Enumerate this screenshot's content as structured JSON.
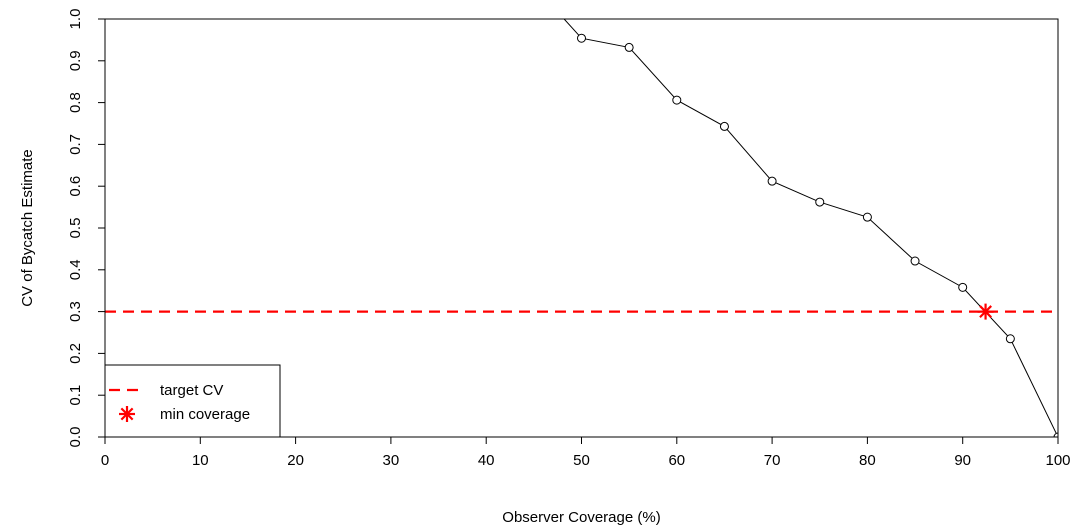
{
  "chart_data": {
    "type": "line",
    "xlabel": "Observer Coverage (%)",
    "ylabel": "CV of Bycatch Estimate",
    "xlim": [
      0,
      100
    ],
    "ylim": [
      0,
      1.0
    ],
    "xticks": [
      0,
      10,
      20,
      30,
      40,
      50,
      60,
      70,
      80,
      90,
      100
    ],
    "xtick_labels": [
      "0",
      "10",
      "20",
      "30",
      "40",
      "50",
      "60",
      "70",
      "80",
      "90",
      "100"
    ],
    "yticks": [
      0,
      0.1,
      0.2,
      0.3,
      0.4,
      0.5,
      0.6,
      0.7,
      0.8,
      0.9,
      1.0
    ],
    "ytick_labels": [
      "0.0",
      "0.1",
      "0.2",
      "0.3",
      "0.4",
      "0.5",
      "0.6",
      "0.7",
      "0.8",
      "0.9",
      "1.0"
    ],
    "grid": false,
    "legend_position": "bottom-left",
    "series": [
      {
        "x": [
          45,
          50,
          55,
          60,
          65,
          70,
          75,
          80,
          85,
          90,
          95,
          100
        ],
        "y": [
          1.08,
          0.954,
          0.932,
          0.806,
          0.743,
          0.612,
          0.562,
          0.526,
          0.421,
          0.358,
          0.235,
          0.0
        ],
        "color": "#000000",
        "marker": "open-circle"
      }
    ],
    "reference_line": {
      "y": 0.3,
      "color": "#ff0000",
      "style": "dashed",
      "label": "target CV"
    },
    "highlight_point": {
      "x": 92.4,
      "y": 0.3,
      "color": "#ff0000",
      "marker": "asterisk",
      "label": "min coverage"
    },
    "legend": [
      {
        "label": "target CV",
        "symbol": "dashed-line",
        "color": "#ff0000"
      },
      {
        "label": "min coverage",
        "symbol": "asterisk",
        "color": "#ff0000"
      }
    ]
  }
}
